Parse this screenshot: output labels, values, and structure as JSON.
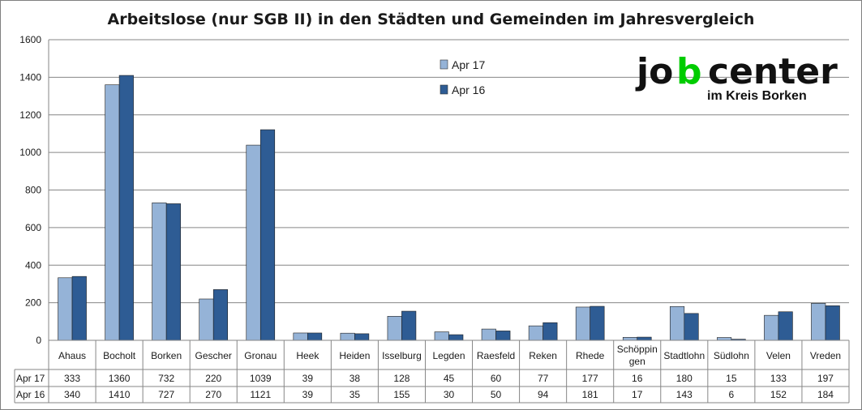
{
  "colors": {
    "series_1": "#95b3d7",
    "series_2": "#2e5c94",
    "grid": "#868686",
    "logo_green": "#00cc00",
    "logo_black": "#111111"
  },
  "logo": {
    "word_left": "jo",
    "word_mid": "b",
    "word_right": "center",
    "subtitle": "im Kreis Borken"
  },
  "chart_data": {
    "type": "bar",
    "title": "Arbeitslose (nur SGB II) in den Städten und Gemeinden im Jahresvergleich",
    "xlabel": "",
    "ylabel": "",
    "ylim": [
      0,
      1600
    ],
    "yticks": [
      "0",
      "200",
      "400",
      "600",
      "800",
      "1000",
      "1200",
      "1400",
      "1600"
    ],
    "grid": true,
    "legend_position": "top-right",
    "categories": [
      "Ahaus",
      "Bocholt",
      "Borken",
      "Gescher",
      "Gronau",
      "Heek",
      "Heiden",
      "Isselburg",
      "Legden",
      "Raesfeld",
      "Reken",
      "Rhede",
      "Schöppingen",
      "Stadtlohn",
      "Südlohn",
      "Velen",
      "Vreden"
    ],
    "category_lines": [
      [
        "Ahaus"
      ],
      [
        "Bocholt"
      ],
      [
        "Borken"
      ],
      [
        "Gescher"
      ],
      [
        "Gronau"
      ],
      [
        "Heek"
      ],
      [
        "Heiden"
      ],
      [
        "Isselburg"
      ],
      [
        "Legden"
      ],
      [
        "Raesfeld"
      ],
      [
        "Reken"
      ],
      [
        "Rhede"
      ],
      [
        "Schöppin",
        "gen"
      ],
      [
        "Stadtlohn"
      ],
      [
        "Südlohn"
      ],
      [
        "Velen"
      ],
      [
        "Vreden"
      ]
    ],
    "series": [
      {
        "name": "Apr 17",
        "values": [
          333,
          1360,
          732,
          220,
          1039,
          39,
          38,
          128,
          45,
          60,
          77,
          177,
          16,
          180,
          15,
          133,
          197
        ]
      },
      {
        "name": "Apr 16",
        "values": [
          340,
          1410,
          727,
          270,
          1121,
          39,
          35,
          155,
          30,
          50,
          94,
          181,
          17,
          143,
          6,
          152,
          184
        ]
      }
    ]
  }
}
